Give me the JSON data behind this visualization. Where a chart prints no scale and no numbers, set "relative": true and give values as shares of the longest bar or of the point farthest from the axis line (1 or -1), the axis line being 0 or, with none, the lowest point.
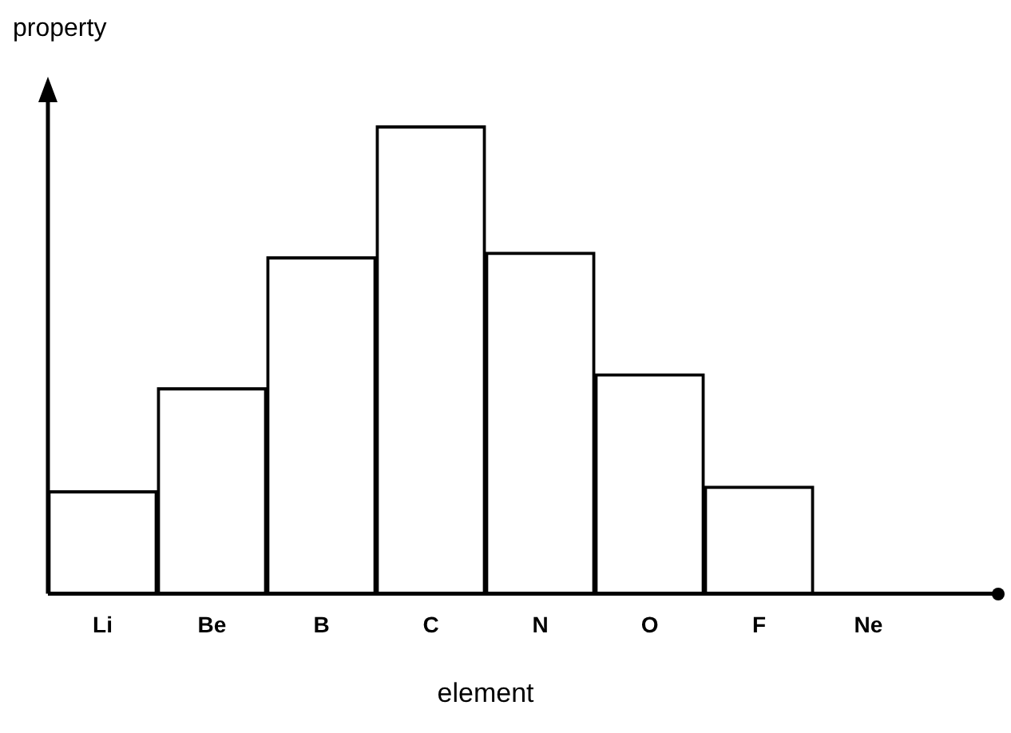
{
  "chart_data": {
    "type": "bar",
    "relative": true,
    "xlabel": "element",
    "ylabel": "property",
    "categories": [
      "Li",
      "Be",
      "B",
      "C",
      "N",
      "O",
      "F",
      "Ne"
    ],
    "series": [
      {
        "color": "#ffffff",
        "values": [
          0.22,
          0.44,
          0.72,
          1,
          0.73,
          0.47,
          0.23,
          0
        ]
      }
    ],
    "grid": false,
    "legend": false
  }
}
